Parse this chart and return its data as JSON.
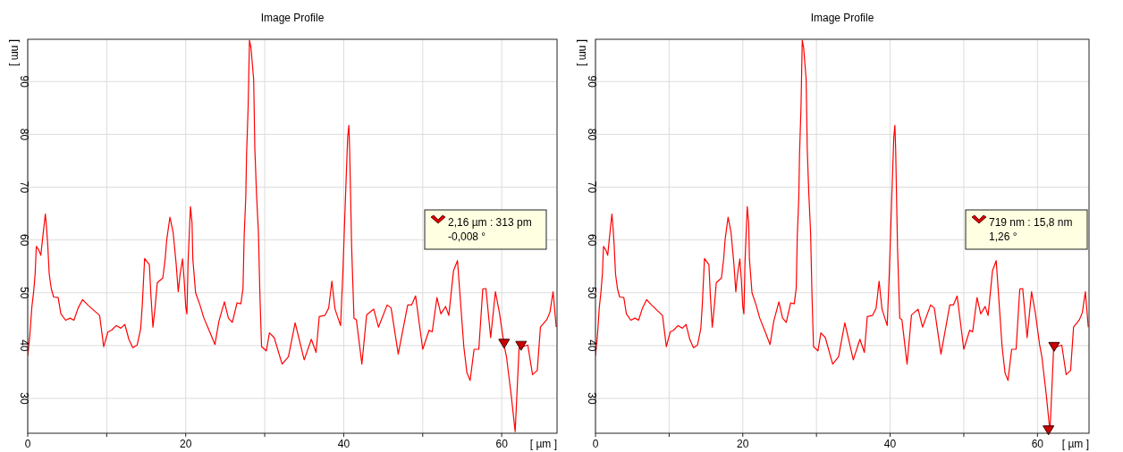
{
  "chart_data": [
    {
      "type": "line",
      "title": "Image Profile",
      "xlabel": "[ µm ]",
      "ylabel": "[ nm ]",
      "annotations": [
        "2,16 µm : 313 pm",
        "-0,008 °"
      ],
      "xlim": [
        0,
        67
      ],
      "xticks": [
        0,
        {
          "value": 10,
          "label": null
        },
        20,
        {
          "value": 30,
          "label": null
        },
        40,
        {
          "value": 50,
          "label": null
        },
        60
      ],
      "ylim": [
        23.4,
        98
      ],
      "yticks": [
        30,
        40,
        50,
        60,
        70,
        80,
        90
      ],
      "grid": true,
      "line_style": "solid",
      "series": [
        {
          "type": "line",
          "color": "#ff0000",
          "x": [
            0,
            0.26,
            0.53,
            0.75,
            0.94,
            1.09,
            1.4,
            1.66,
            1.85,
            2.08,
            2.23,
            2.34,
            2.53,
            2.72,
            2.98,
            3.28,
            3.85,
            4.2,
            4.8,
            5.36,
            5.85,
            6.38,
            6.94,
            7.6,
            9.1,
            9.62,
            10.15,
            10.6,
            11.2,
            11.8,
            12.3,
            12.8,
            13.3,
            13.85,
            14.3,
            14.5,
            14.8,
            15.4,
            15.6,
            15.85,
            16.1,
            16.4,
            17.1,
            17.4,
            17.6,
            18.0,
            18.4,
            18.8,
            19.05,
            19.3,
            19.6,
            19.8,
            20.0,
            20.15,
            20.3,
            20.6,
            20.8,
            20.9,
            21.25,
            21.8,
            22.3,
            23.1,
            23.7,
            24.2,
            24.9,
            25.4,
            25.9,
            26.5,
            26.98,
            27.25,
            27.4,
            27.6,
            27.7,
            27.9,
            28.07,
            28.26,
            28.6,
            28.75,
            28.96,
            29.2,
            29.4,
            29.6,
            30.2,
            30.6,
            31.2,
            32.2,
            33.0,
            33.85,
            35.0,
            35.9,
            36.5,
            36.9,
            37.6,
            38.1,
            38.5,
            38.9,
            39.6,
            39.9,
            40.2,
            40.5,
            40.65,
            40.75,
            41.0,
            41.3,
            41.6,
            42.3,
            42.9,
            43.8,
            44.4,
            45.5,
            46.0,
            46.9,
            48.1,
            48.6,
            49.1,
            50.0,
            50.8,
            51.2,
            51.8,
            52.3,
            52.9,
            53.3,
            53.9,
            54.4,
            55.2,
            55.6,
            56.0,
            56.5,
            57.1,
            57.6,
            58.0,
            58.6,
            59.2,
            59.7,
            60.3,
            60.6,
            61.2,
            61.7,
            62.2,
            62.7,
            63.3,
            63.9,
            64.5,
            64.9,
            65.7,
            66.1,
            66.5,
            66.9
          ],
          "values": [
            38.1,
            41.8,
            47.4,
            50.2,
            53.6,
            58.8,
            58.1,
            57.1,
            59.8,
            62.9,
            64.9,
            63.2,
            59.2,
            53.6,
            50.8,
            49.2,
            49.1,
            46.0,
            44.8,
            45.2,
            44.8,
            47.1,
            48.7,
            47.7,
            45.7,
            39.8,
            42.6,
            42.9,
            43.8,
            43.3,
            44.0,
            41.2,
            39.6,
            40.1,
            43.2,
            47.7,
            56.5,
            55.3,
            49.4,
            43.5,
            46.9,
            51.9,
            52.8,
            56.4,
            60.1,
            64.3,
            61.5,
            55.3,
            50.2,
            53.6,
            56.4,
            52.5,
            47.4,
            46.0,
            55.9,
            66.3,
            63.2,
            56.4,
            50.0,
            47.7,
            45.2,
            42.4,
            40.2,
            44.6,
            48.3,
            45.2,
            44.4,
            48.1,
            47.9,
            50.8,
            60.9,
            68.0,
            76.1,
            85.1,
            97.8,
            96.4,
            90.4,
            77.2,
            68.8,
            61.5,
            49.1,
            39.8,
            39.0,
            42.4,
            41.5,
            36.5,
            37.9,
            44.3,
            37.3,
            41.2,
            38.7,
            45.5,
            45.7,
            47.1,
            52.2,
            46.9,
            43.8,
            54.2,
            67.1,
            79.5,
            81.7,
            77.2,
            58.7,
            45.2,
            44.9,
            36.5,
            45.8,
            46.9,
            43.5,
            47.7,
            47.1,
            38.4,
            47.7,
            47.7,
            49.4,
            39.3,
            42.9,
            42.6,
            49.1,
            46.0,
            47.4,
            45.7,
            54.2,
            56.1,
            39.8,
            34.8,
            33.4,
            39.3,
            39.3,
            50.7,
            50.8,
            41.5,
            50.2,
            46.3,
            40.1,
            37.9,
            30.6,
            23.7,
            39.6,
            39.8,
            40.1,
            34.5,
            35.3,
            43.5,
            44.9,
            46.3,
            50.2,
            43.5
          ]
        },
        {
          "type": "scatter",
          "marker": "triangle",
          "color": "#cc0000",
          "x": [
            60.3,
            62.45
          ],
          "values": [
            40.6,
            40.2
          ]
        }
      ]
    },
    {
      "type": "line",
      "title": "Image Profile",
      "xlabel": "[ µm ]",
      "ylabel": "[ nm ]",
      "annotations": [
        "719 nm : 15,8 nm",
        "1,26 °"
      ],
      "xlim": [
        0,
        67
      ],
      "xticks": [
        0,
        {
          "value": 10,
          "label": null
        },
        20,
        {
          "value": 30,
          "label": null
        },
        40,
        {
          "value": 50,
          "label": null
        },
        60
      ],
      "ylim": [
        23.4,
        98
      ],
      "yticks": [
        30,
        40,
        50,
        60,
        70,
        80,
        90
      ],
      "grid": true,
      "line_style": "solid",
      "series": [
        {
          "type": "line",
          "color": "#ff0000",
          "x": [
            0,
            0.26,
            0.53,
            0.75,
            0.94,
            1.09,
            1.4,
            1.66,
            1.85,
            2.08,
            2.23,
            2.34,
            2.53,
            2.72,
            2.98,
            3.28,
            3.85,
            4.2,
            4.8,
            5.36,
            5.85,
            6.38,
            6.94,
            7.6,
            9.1,
            9.62,
            10.15,
            10.6,
            11.2,
            11.8,
            12.3,
            12.8,
            13.3,
            13.85,
            14.3,
            14.5,
            14.8,
            15.4,
            15.6,
            15.85,
            16.1,
            16.4,
            17.1,
            17.4,
            17.6,
            18.0,
            18.4,
            18.8,
            19.05,
            19.3,
            19.6,
            19.8,
            20.0,
            20.15,
            20.3,
            20.6,
            20.8,
            20.9,
            21.25,
            21.8,
            22.3,
            23.1,
            23.7,
            24.2,
            24.9,
            25.4,
            25.9,
            26.5,
            26.98,
            27.25,
            27.4,
            27.6,
            27.7,
            27.9,
            28.07,
            28.26,
            28.6,
            28.75,
            28.96,
            29.2,
            29.4,
            29.6,
            30.2,
            30.6,
            31.2,
            32.2,
            33.0,
            33.85,
            35.0,
            35.9,
            36.5,
            36.9,
            37.6,
            38.1,
            38.5,
            38.9,
            39.6,
            39.9,
            40.2,
            40.5,
            40.65,
            40.75,
            41.0,
            41.3,
            41.6,
            42.3,
            42.9,
            43.8,
            44.4,
            45.5,
            46.0,
            46.9,
            48.1,
            48.6,
            49.1,
            50.0,
            50.8,
            51.2,
            51.8,
            52.3,
            52.9,
            53.3,
            53.9,
            54.4,
            55.2,
            55.6,
            56.0,
            56.5,
            57.1,
            57.6,
            58.0,
            58.6,
            59.2,
            59.7,
            60.3,
            60.6,
            61.2,
            61.7,
            62.2,
            62.7,
            63.3,
            63.9,
            64.5,
            64.9,
            65.7,
            66.1,
            66.5,
            66.9
          ],
          "values": [
            38.1,
            41.8,
            47.4,
            50.2,
            53.6,
            58.8,
            58.1,
            57.1,
            59.8,
            62.9,
            64.9,
            63.2,
            59.2,
            53.6,
            50.8,
            49.2,
            49.1,
            46.0,
            44.8,
            45.2,
            44.8,
            47.1,
            48.7,
            47.7,
            45.7,
            39.8,
            42.6,
            42.9,
            43.8,
            43.3,
            44.0,
            41.2,
            39.6,
            40.1,
            43.2,
            47.7,
            56.5,
            55.3,
            49.4,
            43.5,
            46.9,
            51.9,
            52.8,
            56.4,
            60.1,
            64.3,
            61.5,
            55.3,
            50.2,
            53.6,
            56.4,
            52.5,
            47.4,
            46.0,
            55.9,
            66.3,
            63.2,
            56.4,
            50.0,
            47.7,
            45.2,
            42.4,
            40.2,
            44.6,
            48.3,
            45.2,
            44.4,
            48.1,
            47.9,
            50.8,
            60.9,
            68.0,
            76.1,
            85.1,
            97.8,
            96.4,
            90.4,
            77.2,
            68.8,
            61.5,
            49.1,
            39.8,
            39.0,
            42.4,
            41.5,
            36.5,
            37.9,
            44.3,
            37.3,
            41.2,
            38.7,
            45.5,
            45.7,
            47.1,
            52.2,
            46.9,
            43.8,
            54.2,
            67.1,
            79.5,
            81.7,
            77.2,
            58.7,
            45.2,
            44.9,
            36.5,
            45.8,
            46.9,
            43.5,
            47.7,
            47.1,
            38.4,
            47.7,
            47.7,
            49.4,
            39.3,
            42.9,
            42.6,
            49.1,
            46.0,
            47.4,
            45.7,
            54.2,
            56.1,
            39.8,
            34.8,
            33.4,
            39.3,
            39.3,
            50.7,
            50.8,
            41.5,
            50.2,
            46.3,
            40.1,
            37.9,
            30.6,
            23.7,
            39.6,
            39.8,
            40.1,
            34.5,
            35.3,
            43.5,
            44.9,
            46.3,
            50.2,
            43.5
          ]
        },
        {
          "type": "scatter",
          "marker": "triangle",
          "color": "#cc0000",
          "x": [
            61.5,
            62.26
          ],
          "values": [
            24.2,
            40.0
          ]
        }
      ]
    }
  ]
}
